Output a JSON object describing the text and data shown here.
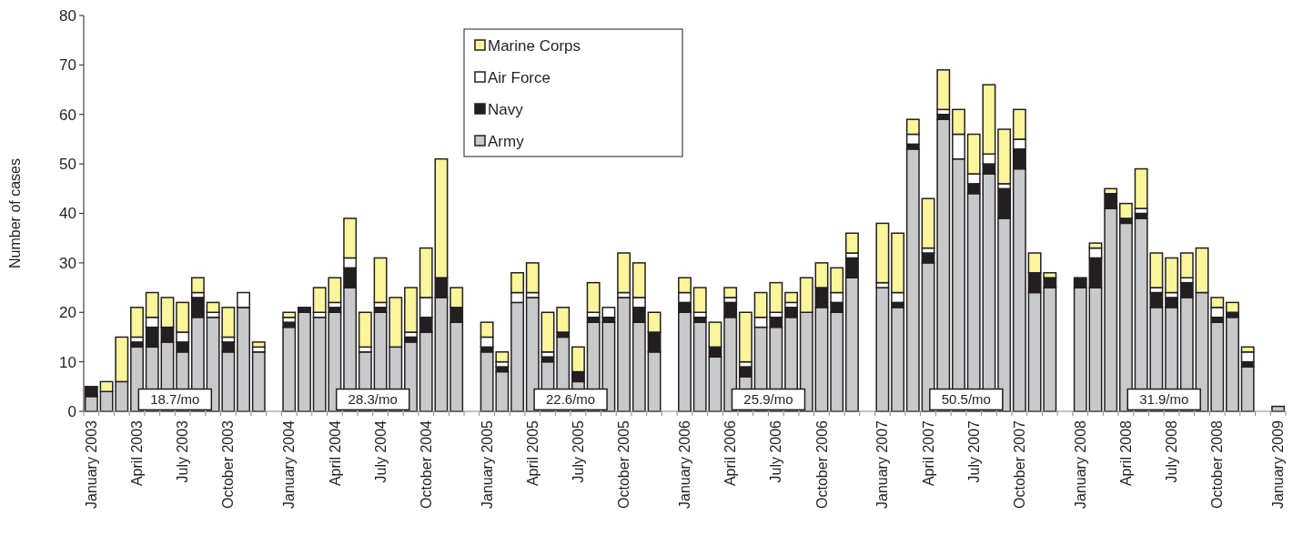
{
  "chart_data": {
    "type": "bar",
    "stacked": true,
    "ylabel": "Number of cases",
    "ylim": [
      0,
      80
    ],
    "yticks": [
      0,
      10,
      20,
      30,
      40,
      50,
      60,
      70,
      80
    ],
    "legend": "top",
    "grid": false,
    "categories": [
      "January 2003",
      null,
      null,
      "April 2003",
      null,
      null,
      "July 2003",
      null,
      null,
      "October 2003",
      null,
      null,
      null,
      "January 2004",
      null,
      null,
      "April 2004",
      null,
      null,
      "July 2004",
      null,
      null,
      "October 2004",
      null,
      null,
      null,
      "January 2005",
      null,
      null,
      "April 2005",
      null,
      null,
      "July 2005",
      null,
      null,
      "October 2005",
      null,
      null,
      null,
      "January 2006",
      null,
      null,
      "April 2006",
      null,
      null,
      "July 2006",
      null,
      null,
      "October 2006",
      null,
      null,
      null,
      "January 2007",
      null,
      null,
      "April 2007",
      null,
      null,
      "July 2007",
      null,
      null,
      "October 2007",
      null,
      null,
      null,
      "January 2008",
      null,
      null,
      "April 2008",
      null,
      null,
      "July 2008",
      null,
      null,
      "October 2008",
      null,
      null,
      null,
      "January 2009"
    ],
    "series": [
      {
        "name": "Army",
        "color": "#c8c9cb",
        "values": [
          3,
          4,
          6,
          13,
          13,
          14,
          12,
          19,
          19,
          12,
          21,
          12,
          null,
          17,
          20,
          19,
          20,
          25,
          12,
          20,
          13,
          14,
          16,
          23,
          18,
          null,
          12,
          8,
          22,
          23,
          10,
          15,
          6,
          18,
          18,
          23,
          18,
          12,
          null,
          20,
          18,
          11,
          19,
          7,
          17,
          17,
          19,
          20,
          21,
          20,
          27,
          null,
          25,
          21,
          53,
          30,
          59,
          51,
          44,
          48,
          39,
          49,
          24,
          25,
          null,
          25,
          25,
          41,
          38,
          39,
          21,
          21,
          23,
          24,
          18,
          19,
          9,
          null,
          1
        ]
      },
      {
        "name": "Navy",
        "color": "#231f20",
        "values": [
          2,
          0,
          0,
          1,
          4,
          3,
          2,
          4,
          0,
          2,
          0,
          0,
          null,
          1,
          1,
          0,
          1,
          4,
          0,
          1,
          0,
          1,
          3,
          4,
          3,
          null,
          1,
          1,
          0,
          0,
          1,
          1,
          2,
          1,
          1,
          0,
          3,
          4,
          null,
          2,
          1,
          2,
          3,
          2,
          0,
          2,
          2,
          0,
          4,
          2,
          4,
          null,
          0,
          1,
          1,
          2,
          1,
          0,
          2,
          2,
          6,
          4,
          4,
          2,
          null,
          2,
          6,
          3,
          1,
          1,
          3,
          2,
          3,
          0,
          1,
          1,
          1,
          null,
          0
        ]
      },
      {
        "name": "Air Force",
        "color": "#ffffff",
        "values": [
          0,
          0,
          0,
          1,
          2,
          0,
          2,
          1,
          1,
          1,
          3,
          1,
          null,
          1,
          0,
          1,
          1,
          2,
          1,
          1,
          0,
          1,
          4,
          0,
          0,
          null,
          2,
          1,
          2,
          1,
          1,
          0,
          0,
          1,
          2,
          1,
          2,
          0,
          null,
          2,
          1,
          0,
          1,
          1,
          2,
          1,
          1,
          0,
          0,
          2,
          1,
          null,
          1,
          2,
          2,
          1,
          1,
          5,
          2,
          2,
          1,
          2,
          0,
          0,
          null,
          0,
          2,
          0,
          0,
          1,
          1,
          1,
          1,
          0,
          2,
          0,
          2,
          null,
          0
        ]
      },
      {
        "name": "Marine Corps",
        "color": "#fbf59b",
        "values": [
          0,
          2,
          9,
          6,
          5,
          6,
          6,
          3,
          2,
          6,
          0,
          1,
          null,
          1,
          0,
          5,
          5,
          8,
          7,
          9,
          10,
          9,
          10,
          24,
          4,
          null,
          3,
          2,
          4,
          6,
          8,
          5,
          5,
          6,
          0,
          8,
          7,
          4,
          null,
          3,
          5,
          5,
          2,
          10,
          5,
          6,
          2,
          7,
          5,
          5,
          4,
          null,
          12,
          12,
          3,
          10,
          8,
          5,
          8,
          14,
          11,
          6,
          4,
          1,
          null,
          0,
          1,
          1,
          3,
          8,
          7,
          7,
          5,
          9,
          2,
          2,
          1,
          null,
          0
        ]
      }
    ],
    "annotations": [
      "18.7/mo",
      "28.3/mo",
      "22.6/mo",
      "25.9/mo",
      "50.5/mo",
      "31.9/mo"
    ]
  }
}
